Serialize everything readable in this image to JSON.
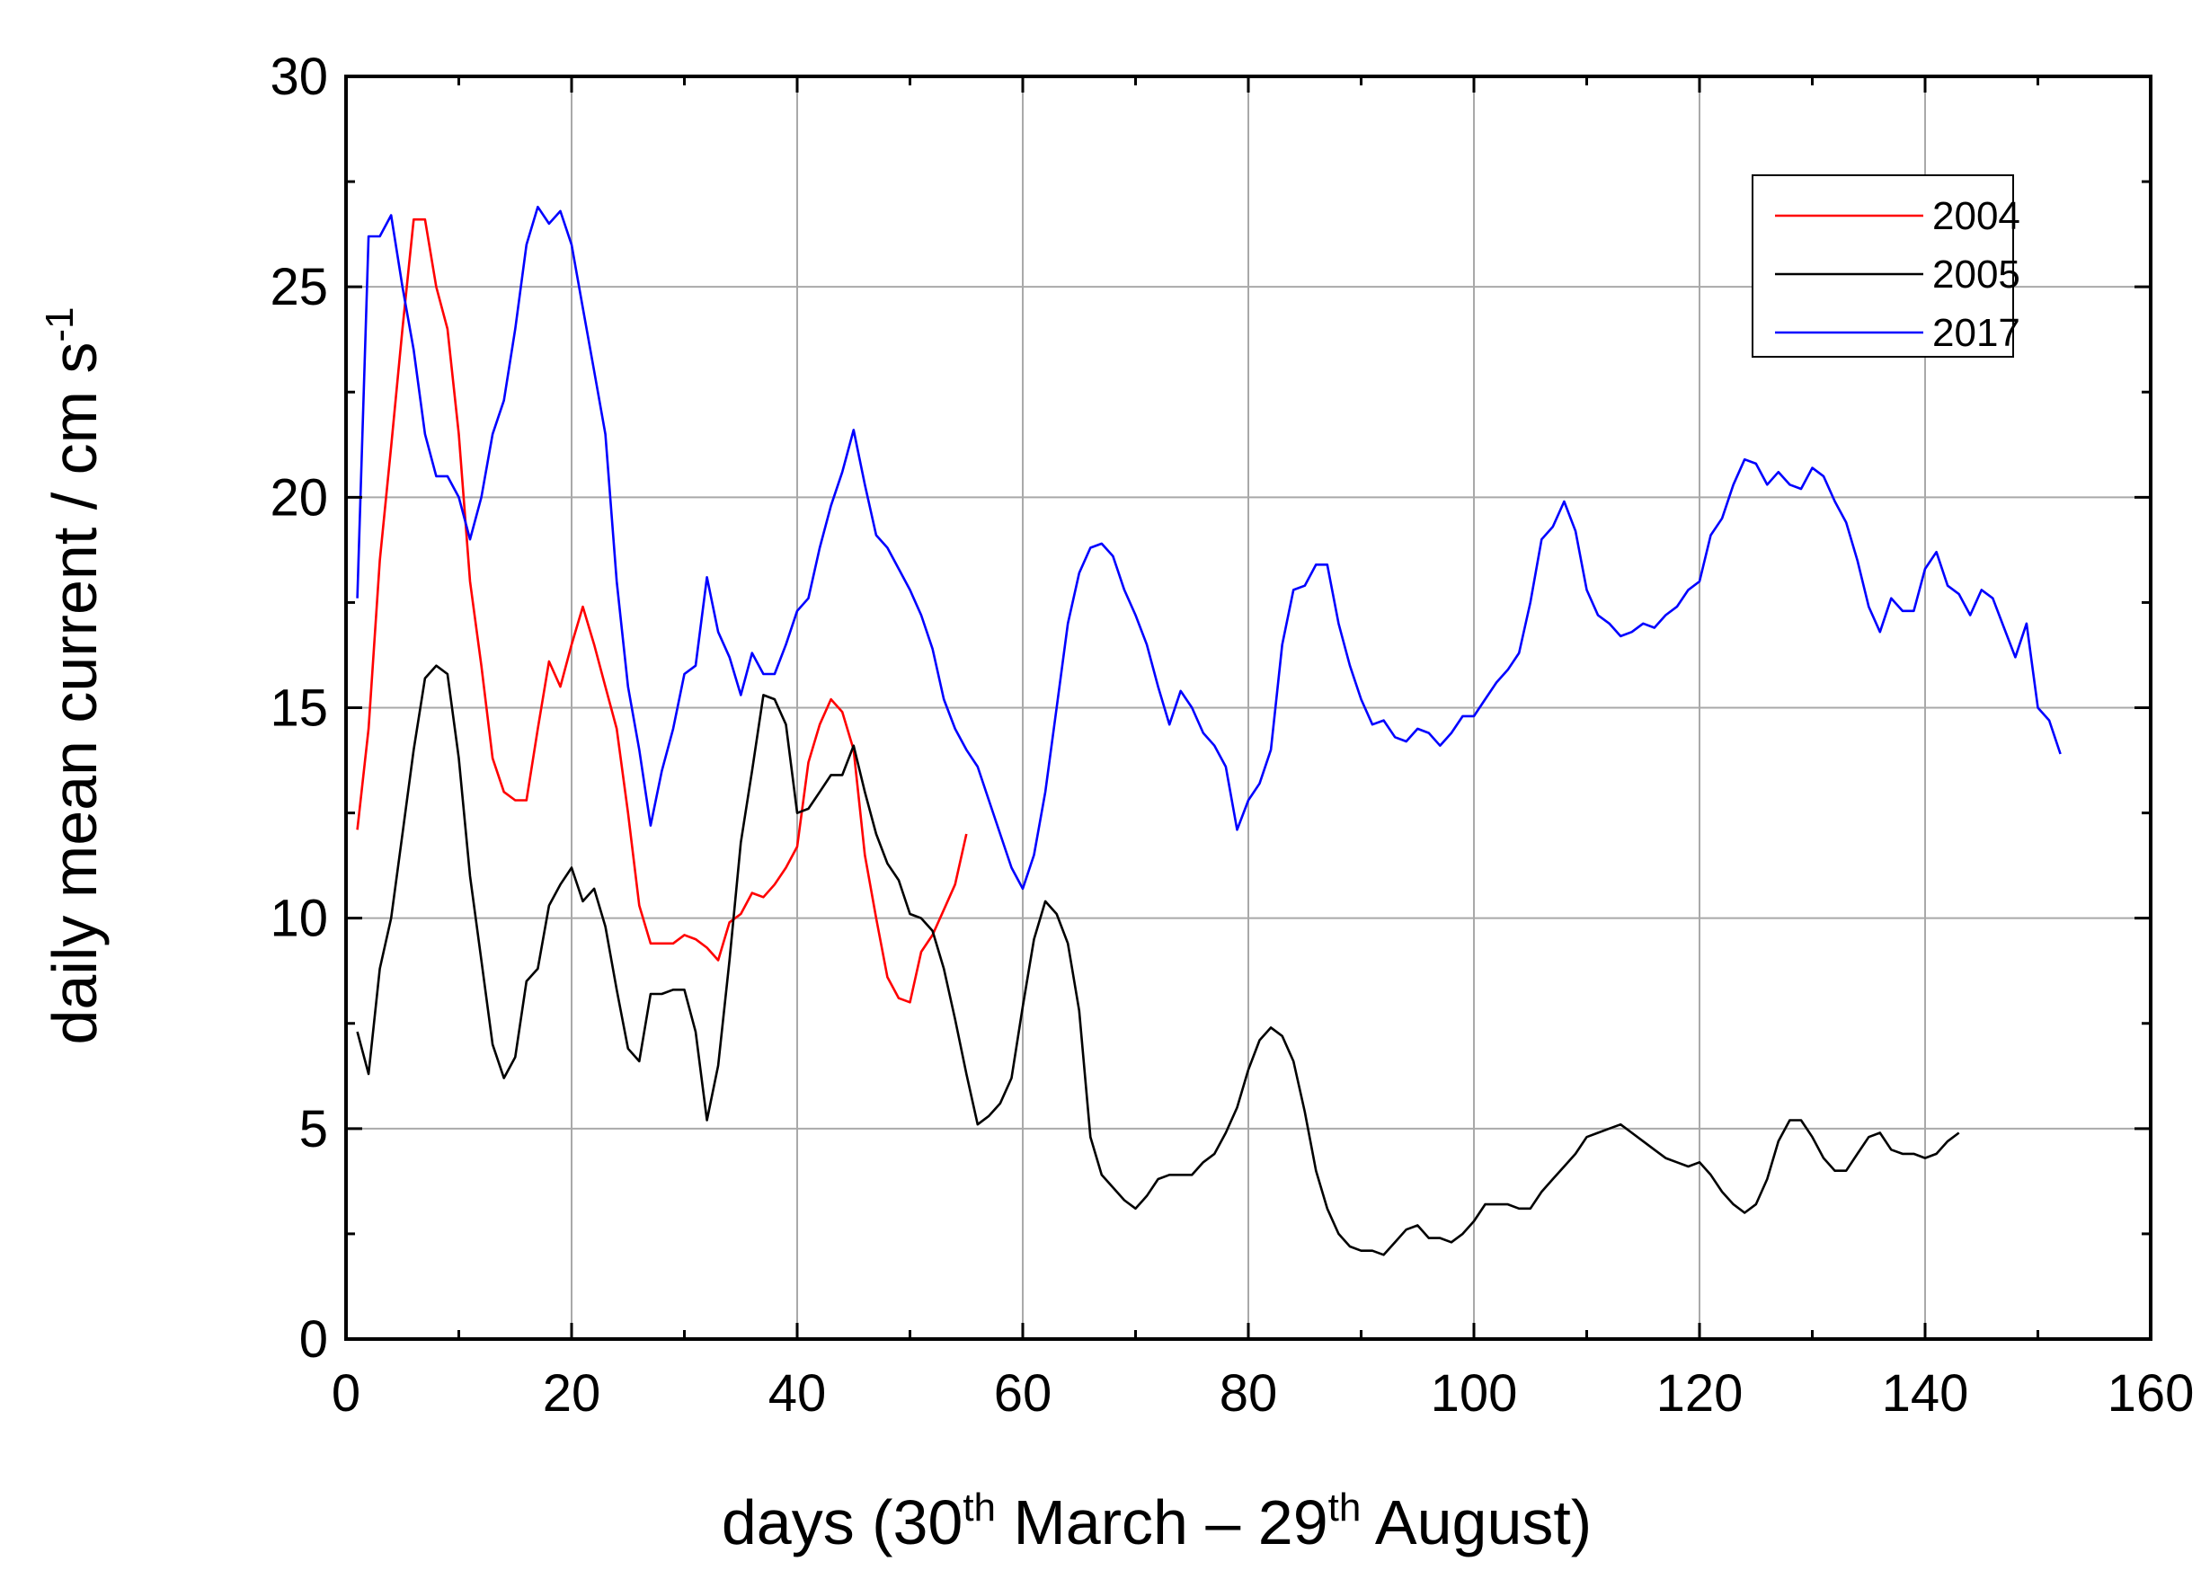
{
  "chart_data": {
    "type": "line",
    "title": "",
    "xlabel": {
      "prefix": "days (30",
      "sup1": "th",
      "middle": " March – 29",
      "sup2": "th",
      "suffix": " August)"
    },
    "ylabel": {
      "main": "daily mean current / cm s",
      "sup": "-1"
    },
    "xlim": [
      0,
      160
    ],
    "ylim": [
      0,
      30
    ],
    "xticks": [
      0,
      20,
      40,
      60,
      80,
      100,
      120,
      140,
      160
    ],
    "yticks": [
      0,
      5,
      10,
      15,
      20,
      25,
      30
    ],
    "grid": true,
    "legend_position": "top-right",
    "series": [
      {
        "name": "2004",
        "color": "#ff0000",
        "x": [
          1,
          2,
          3,
          4,
          5,
          6,
          7,
          8,
          9,
          10,
          11,
          12,
          13,
          14,
          15,
          16,
          17,
          18,
          19,
          20,
          21,
          22,
          23,
          24,
          25,
          26,
          27,
          28,
          29,
          30,
          31,
          32,
          33,
          34,
          35,
          36,
          37,
          38,
          39,
          40,
          41,
          42,
          43,
          44,
          45,
          46,
          47,
          48,
          49,
          50,
          51,
          52,
          53,
          54,
          55
        ],
        "y": [
          12.1,
          14.5,
          18.5,
          21.2,
          24.0,
          26.6,
          26.6,
          25.0,
          24.0,
          21.5,
          18.0,
          16.0,
          13.8,
          13.0,
          12.8,
          12.8,
          14.5,
          16.1,
          15.5,
          16.5,
          17.4,
          16.5,
          15.5,
          14.5,
          12.5,
          10.3,
          9.4,
          9.4,
          9.4,
          9.6,
          9.5,
          9.3,
          9.0,
          9.9,
          10.1,
          10.6,
          10.5,
          10.8,
          11.2,
          11.7,
          13.7,
          14.6,
          15.2,
          14.9,
          14.0,
          11.5,
          10.0,
          8.6,
          8.1,
          8.0,
          9.2,
          9.6,
          10.2,
          10.8,
          12.0
        ]
      },
      {
        "name": "2005",
        "color": "#000000",
        "x": [
          1,
          2,
          3,
          4,
          5,
          6,
          7,
          8,
          9,
          10,
          11,
          12,
          13,
          14,
          15,
          16,
          17,
          18,
          19,
          20,
          21,
          22,
          23,
          24,
          25,
          26,
          27,
          28,
          29,
          30,
          31,
          32,
          33,
          34,
          35,
          36,
          37,
          38,
          39,
          40,
          41,
          42,
          43,
          44,
          45,
          46,
          47,
          48,
          49,
          50,
          51,
          52,
          53,
          54,
          55,
          56,
          57,
          58,
          59,
          60,
          61,
          62,
          63,
          64,
          65,
          66,
          67,
          68,
          69,
          70,
          71,
          72,
          73,
          74,
          75,
          76,
          77,
          78,
          79,
          80,
          81,
          82,
          83,
          84,
          85,
          86,
          87,
          88,
          89,
          90,
          91,
          92,
          93,
          94,
          95,
          96,
          97,
          98,
          99,
          100,
          101,
          102,
          103,
          104,
          105,
          106,
          107,
          108,
          109,
          110,
          111,
          112,
          113,
          114,
          115,
          116,
          117,
          118,
          119,
          120,
          121,
          122,
          123,
          124,
          125,
          126,
          127,
          128,
          129,
          130,
          131,
          132,
          133,
          134,
          135,
          136,
          137,
          138,
          139,
          140,
          141,
          142,
          143
        ],
        "y": [
          7.3,
          6.3,
          8.8,
          10.0,
          12.0,
          14.0,
          15.7,
          16.0,
          15.8,
          13.8,
          11.0,
          9.0,
          7.0,
          6.2,
          6.7,
          8.5,
          8.8,
          10.3,
          10.8,
          11.2,
          10.4,
          10.7,
          9.8,
          8.3,
          6.9,
          6.6,
          8.2,
          8.2,
          8.3,
          8.3,
          7.3,
          5.2,
          6.5,
          9.0,
          11.8,
          13.5,
          15.3,
          15.2,
          14.6,
          12.5,
          12.6,
          13.0,
          13.4,
          13.4,
          14.1,
          13.0,
          12.0,
          11.3,
          10.9,
          10.1,
          10.0,
          9.7,
          8.8,
          7.6,
          6.3,
          5.1,
          5.3,
          5.6,
          6.2,
          7.9,
          9.5,
          10.4,
          10.1,
          9.4,
          7.8,
          4.8,
          3.9,
          3.6,
          3.3,
          3.1,
          3.4,
          3.8,
          3.9,
          3.9,
          3.9,
          4.2,
          4.4,
          4.9,
          5.5,
          6.4,
          7.1,
          7.4,
          7.2,
          6.6,
          5.4,
          4.0,
          3.1,
          2.5,
          2.2,
          2.1,
          2.1,
          2.0,
          2.3,
          2.6,
          2.7,
          2.4,
          2.4,
          2.3,
          2.5,
          2.8,
          3.2,
          3.2,
          3.2,
          3.1,
          3.1,
          3.5,
          3.8,
          4.1,
          4.4,
          4.8,
          4.9,
          5.0,
          5.1,
          4.9,
          4.7,
          4.5,
          4.3,
          4.2,
          4.1,
          4.2,
          3.9,
          3.5,
          3.2,
          3.0,
          3.2,
          3.8,
          4.7,
          5.2,
          5.2,
          4.8,
          4.3,
          4.0,
          4.0,
          4.4,
          4.8,
          4.9,
          4.5,
          4.4,
          4.4,
          4.3,
          4.4,
          4.7,
          4.9
        ]
      },
      {
        "name": "2017",
        "color": "#0000ff",
        "x": [
          1,
          2,
          3,
          4,
          5,
          6,
          7,
          8,
          9,
          10,
          11,
          12,
          13,
          14,
          15,
          16,
          17,
          18,
          19,
          20,
          21,
          22,
          23,
          24,
          25,
          26,
          27,
          28,
          29,
          30,
          31,
          32,
          33,
          34,
          35,
          36,
          37,
          38,
          39,
          40,
          41,
          42,
          43,
          44,
          45,
          46,
          47,
          48,
          49,
          50,
          51,
          52,
          53,
          54,
          55,
          56,
          57,
          58,
          59,
          60,
          61,
          62,
          63,
          64,
          65,
          66,
          67,
          68,
          69,
          70,
          71,
          72,
          73,
          74,
          75,
          76,
          77,
          78,
          79,
          80,
          81,
          82,
          83,
          84,
          85,
          86,
          87,
          88,
          89,
          90,
          91,
          92,
          93,
          94,
          95,
          96,
          97,
          98,
          99,
          100,
          101,
          102,
          103,
          104,
          105,
          106,
          107,
          108,
          109,
          110,
          111,
          112,
          113,
          114,
          115,
          116,
          117,
          118,
          119,
          120,
          121,
          122,
          123,
          124,
          125,
          126,
          127,
          128,
          129,
          130,
          131,
          132,
          133,
          134,
          135,
          136,
          137,
          138,
          139,
          140,
          141,
          142,
          143,
          144,
          145,
          146,
          147,
          148,
          149,
          150,
          151,
          152
        ],
        "y": [
          17.6,
          26.2,
          26.2,
          26.7,
          25.0,
          23.5,
          21.5,
          20.5,
          20.5,
          20.0,
          19.0,
          20.0,
          21.5,
          22.3,
          24.0,
          26.0,
          26.9,
          26.5,
          26.8,
          26.0,
          24.5,
          23.0,
          21.5,
          18.0,
          15.5,
          14.0,
          12.2,
          13.5,
          14.5,
          15.8,
          16.0,
          18.1,
          16.8,
          16.2,
          15.3,
          16.3,
          15.8,
          15.8,
          16.5,
          17.3,
          17.6,
          18.8,
          19.8,
          20.6,
          21.6,
          20.3,
          19.1,
          18.8,
          18.3,
          17.8,
          17.2,
          16.4,
          15.2,
          14.5,
          14.0,
          13.6,
          12.8,
          12.0,
          11.2,
          10.7,
          11.5,
          13.0,
          15.0,
          17.0,
          18.2,
          18.8,
          18.9,
          18.6,
          17.8,
          17.2,
          16.5,
          15.5,
          14.6,
          15.4,
          15.0,
          14.4,
          14.1,
          13.6,
          12.1,
          12.8,
          13.2,
          14.0,
          16.5,
          17.8,
          17.9,
          18.4,
          18.4,
          17.0,
          16.0,
          15.2,
          14.6,
          14.7,
          14.3,
          14.2,
          14.5,
          14.4,
          14.1,
          14.4,
          14.8,
          14.8,
          15.2,
          15.6,
          15.9,
          16.3,
          17.5,
          19.0,
          19.3,
          19.9,
          19.2,
          17.8,
          17.2,
          17.0,
          16.7,
          16.8,
          17.0,
          16.9,
          17.2,
          17.4,
          17.8,
          18.0,
          19.1,
          19.5,
          20.3,
          20.9,
          20.8,
          20.3,
          20.6,
          20.3,
          20.2,
          20.7,
          20.5,
          19.9,
          19.4,
          18.5,
          17.4,
          16.8,
          17.6,
          17.3,
          17.3,
          18.3,
          18.7,
          17.9,
          17.7,
          17.2,
          17.8,
          17.6,
          16.9,
          16.2,
          17.0,
          15.0,
          14.7,
          13.9
        ]
      }
    ]
  }
}
